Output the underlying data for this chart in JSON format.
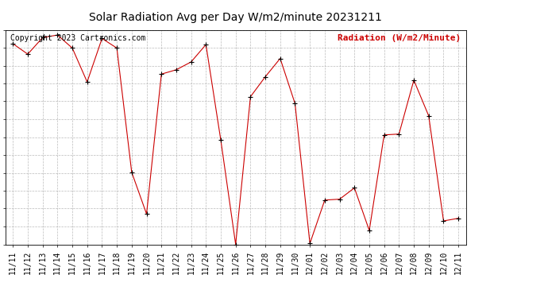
{
  "title": "Solar Radiation Avg per Day W/m2/minute 20231211",
  "copyright": "Copyright 2023 Cartronics.com",
  "legend_label": "Radiation (W/m2/Minute)",
  "dates": [
    "11/11",
    "11/12",
    "11/13",
    "11/14",
    "11/15",
    "11/16",
    "11/17",
    "11/18",
    "11/19",
    "11/20",
    "11/21",
    "11/22",
    "11/23",
    "11/24",
    "11/25",
    "11/26",
    "11/27",
    "11/28",
    "11/29",
    "11/30",
    "12/01",
    "12/02",
    "12/03",
    "12/04",
    "12/05",
    "12/06",
    "12/07",
    "12/08",
    "12/09",
    "12/10",
    "12/11"
  ],
  "values": [
    258,
    246,
    265,
    268,
    253,
    214,
    264,
    253,
    110,
    62,
    223,
    228,
    237,
    257,
    147,
    27,
    197,
    220,
    241,
    189,
    28,
    78,
    79,
    92,
    43,
    153,
    154,
    216,
    175,
    54,
    57
  ],
  "line_color": "#cc0000",
  "marker_color": "#000000",
  "bg_color": "#ffffff",
  "plot_bg_color": "#ffffff",
  "grid_color": "#aaaaaa",
  "title_fontsize": 10,
  "tick_fontsize": 7,
  "copyright_fontsize": 7,
  "legend_fontsize": 8,
  "ylim_min": 27.0,
  "ylim_max": 274.0,
  "yticks": [
    27.0,
    47.6,
    68.2,
    88.8,
    109.3,
    129.9,
    150.5,
    171.1,
    191.7,
    212.2,
    232.8,
    253.4,
    274.0
  ]
}
